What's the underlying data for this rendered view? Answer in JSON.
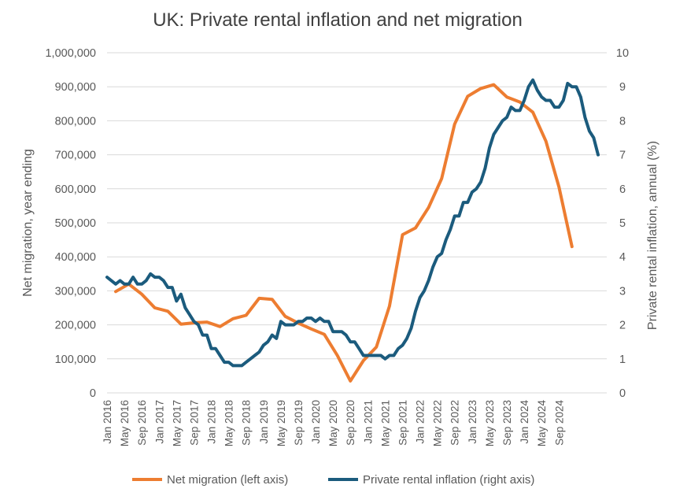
{
  "chart_data": {
    "type": "line",
    "title": "UK: Private rental inflation and net migration",
    "y_left_label": "Net migration, year ending",
    "y_right_label": "Private rental inflation, annual (%)",
    "y_left_range": [
      0,
      1000000
    ],
    "y_right_range": [
      0,
      10
    ],
    "y_left_ticks": [
      "0",
      "100,000",
      "200,000",
      "300,000",
      "400,000",
      "500,000",
      "600,000",
      "700,000",
      "800,000",
      "900,000",
      "1,000,000"
    ],
    "y_right_ticks": [
      "0",
      "1",
      "2",
      "3",
      "4",
      "5",
      "6",
      "7",
      "8",
      "9",
      "10"
    ],
    "x_range": [
      "2016-01",
      "2025-08"
    ],
    "x_ticks": [
      "Jan 2016",
      "May 2016",
      "Sep 2016",
      "Jan 2017",
      "May 2017",
      "Sep 2017",
      "Jan 2018",
      "May 2018",
      "Sep 2018",
      "Jan 2019",
      "May 2019",
      "Sep 2019",
      "Jan 2020",
      "May 2020",
      "Sep 2020",
      "Jan 2021",
      "May 2021",
      "Sep 2021",
      "Jan 2022",
      "May 2022",
      "Sep 2022",
      "Jan 2023",
      "May 2023",
      "Sep 2023",
      "Jan 2024",
      "May 2024",
      "Sep 2024"
    ],
    "grid": "horizontal",
    "legend_position": "bottom",
    "series": [
      {
        "name": "Net migration (left axis)",
        "axis": "left",
        "color": "#ED7D31",
        "points": [
          [
            "2016-03",
            298000
          ],
          [
            "2016-06",
            320000
          ],
          [
            "2016-09",
            290000
          ],
          [
            "2016-12",
            250000
          ],
          [
            "2017-03",
            240000
          ],
          [
            "2017-06",
            202000
          ],
          [
            "2017-09",
            206000
          ],
          [
            "2017-12",
            208000
          ],
          [
            "2018-03",
            195000
          ],
          [
            "2018-06",
            218000
          ],
          [
            "2018-09",
            228000
          ],
          [
            "2018-12",
            278000
          ],
          [
            "2019-03",
            275000
          ],
          [
            "2019-06",
            225000
          ],
          [
            "2019-09",
            205000
          ],
          [
            "2019-12",
            188000
          ],
          [
            "2020-03",
            172000
          ],
          [
            "2020-06",
            110000
          ],
          [
            "2020-09",
            35000
          ],
          [
            "2020-12",
            95000
          ],
          [
            "2021-03",
            135000
          ],
          [
            "2021-06",
            255000
          ],
          [
            "2021-09",
            465000
          ],
          [
            "2021-12",
            485000
          ],
          [
            "2022-03",
            545000
          ],
          [
            "2022-06",
            630000
          ],
          [
            "2022-09",
            790000
          ],
          [
            "2022-12",
            872000
          ],
          [
            "2023-03",
            895000
          ],
          [
            "2023-06",
            906000
          ],
          [
            "2023-09",
            870000
          ],
          [
            "2023-12",
            855000
          ],
          [
            "2024-03",
            825000
          ],
          [
            "2024-06",
            740000
          ],
          [
            "2024-09",
            605000
          ],
          [
            "2024-12",
            430000
          ]
        ]
      },
      {
        "name": "Private rental inflation (right axis)",
        "axis": "right",
        "color": "#1B5B7D",
        "points": [
          [
            "2016-01",
            3.4
          ],
          [
            "2016-02",
            3.3
          ],
          [
            "2016-03",
            3.2
          ],
          [
            "2016-04",
            3.3
          ],
          [
            "2016-05",
            3.2
          ],
          [
            "2016-06",
            3.2
          ],
          [
            "2016-07",
            3.4
          ],
          [
            "2016-08",
            3.2
          ],
          [
            "2016-09",
            3.2
          ],
          [
            "2016-10",
            3.3
          ],
          [
            "2016-11",
            3.5
          ],
          [
            "2016-12",
            3.4
          ],
          [
            "2017-01",
            3.4
          ],
          [
            "2017-02",
            3.3
          ],
          [
            "2017-03",
            3.1
          ],
          [
            "2017-04",
            3.1
          ],
          [
            "2017-05",
            2.7
          ],
          [
            "2017-06",
            2.9
          ],
          [
            "2017-07",
            2.5
          ],
          [
            "2017-08",
            2.3
          ],
          [
            "2017-09",
            2.1
          ],
          [
            "2017-10",
            2.0
          ],
          [
            "2017-11",
            1.7
          ],
          [
            "2017-12",
            1.7
          ],
          [
            "2018-01",
            1.3
          ],
          [
            "2018-02",
            1.3
          ],
          [
            "2018-03",
            1.1
          ],
          [
            "2018-04",
            0.9
          ],
          [
            "2018-05",
            0.9
          ],
          [
            "2018-06",
            0.8
          ],
          [
            "2018-07",
            0.8
          ],
          [
            "2018-08",
            0.8
          ],
          [
            "2018-09",
            0.9
          ],
          [
            "2018-10",
            1.0
          ],
          [
            "2018-11",
            1.1
          ],
          [
            "2018-12",
            1.2
          ],
          [
            "2019-01",
            1.4
          ],
          [
            "2019-02",
            1.5
          ],
          [
            "2019-03",
            1.7
          ],
          [
            "2019-04",
            1.6
          ],
          [
            "2019-05",
            2.1
          ],
          [
            "2019-06",
            2.0
          ],
          [
            "2019-07",
            2.0
          ],
          [
            "2019-08",
            2.0
          ],
          [
            "2019-09",
            2.1
          ],
          [
            "2019-10",
            2.1
          ],
          [
            "2019-11",
            2.2
          ],
          [
            "2019-12",
            2.2
          ],
          [
            "2020-01",
            2.1
          ],
          [
            "2020-02",
            2.2
          ],
          [
            "2020-03",
            2.1
          ],
          [
            "2020-04",
            2.1
          ],
          [
            "2020-05",
            1.8
          ],
          [
            "2020-06",
            1.8
          ],
          [
            "2020-07",
            1.8
          ],
          [
            "2020-08",
            1.7
          ],
          [
            "2020-09",
            1.5
          ],
          [
            "2020-10",
            1.5
          ],
          [
            "2020-11",
            1.3
          ],
          [
            "2020-12",
            1.1
          ],
          [
            "2021-01",
            1.1
          ],
          [
            "2021-02",
            1.1
          ],
          [
            "2021-03",
            1.1
          ],
          [
            "2021-04",
            1.1
          ],
          [
            "2021-05",
            1.0
          ],
          [
            "2021-06",
            1.1
          ],
          [
            "2021-07",
            1.1
          ],
          [
            "2021-08",
            1.3
          ],
          [
            "2021-09",
            1.4
          ],
          [
            "2021-10",
            1.6
          ],
          [
            "2021-11",
            1.9
          ],
          [
            "2021-12",
            2.4
          ],
          [
            "2022-01",
            2.8
          ],
          [
            "2022-02",
            3.0
          ],
          [
            "2022-03",
            3.3
          ],
          [
            "2022-04",
            3.7
          ],
          [
            "2022-05",
            4.0
          ],
          [
            "2022-06",
            4.1
          ],
          [
            "2022-07",
            4.5
          ],
          [
            "2022-08",
            4.8
          ],
          [
            "2022-09",
            5.2
          ],
          [
            "2022-10",
            5.2
          ],
          [
            "2022-11",
            5.6
          ],
          [
            "2022-12",
            5.6
          ],
          [
            "2023-01",
            5.9
          ],
          [
            "2023-02",
            6.0
          ],
          [
            "2023-03",
            6.2
          ],
          [
            "2023-04",
            6.6
          ],
          [
            "2023-05",
            7.2
          ],
          [
            "2023-06",
            7.6
          ],
          [
            "2023-07",
            7.8
          ],
          [
            "2023-08",
            8.0
          ],
          [
            "2023-09",
            8.1
          ],
          [
            "2023-10",
            8.4
          ],
          [
            "2023-11",
            8.3
          ],
          [
            "2023-12",
            8.3
          ],
          [
            "2024-01",
            8.6
          ],
          [
            "2024-02",
            9.0
          ],
          [
            "2024-03",
            9.2
          ],
          [
            "2024-04",
            8.9
          ],
          [
            "2024-05",
            8.7
          ],
          [
            "2024-06",
            8.6
          ],
          [
            "2024-07",
            8.6
          ],
          [
            "2024-08",
            8.4
          ],
          [
            "2024-09",
            8.4
          ],
          [
            "2024-10",
            8.6
          ],
          [
            "2024-11",
            9.1
          ],
          [
            "2024-12",
            9.0
          ],
          [
            "2025-01",
            9.0
          ],
          [
            "2025-02",
            8.7
          ],
          [
            "2025-03",
            8.1
          ],
          [
            "2025-04",
            7.7
          ],
          [
            "2025-05",
            7.5
          ],
          [
            "2025-06",
            7.0
          ]
        ]
      }
    ]
  }
}
